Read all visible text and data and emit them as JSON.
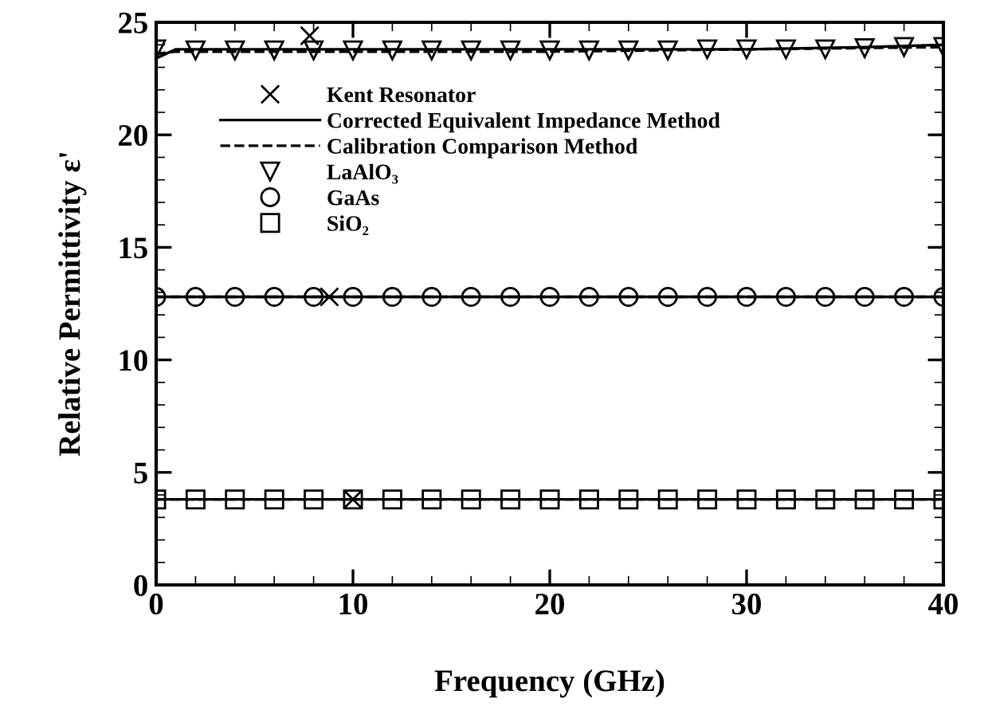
{
  "chart_data": {
    "type": "line",
    "xlabel": "Frequency (GHz)",
    "ylabel": "Relative Permittivity ε'",
    "xlim": [
      0,
      40
    ],
    "ylim": [
      0,
      25
    ],
    "xticks": [
      0,
      {
        "value": 2,
        "label": null
      },
      {
        "value": 4,
        "label": null
      },
      {
        "value": 6,
        "label": null
      },
      {
        "value": 8,
        "label": null
      },
      10,
      {
        "value": 12,
        "label": null
      },
      {
        "value": 14,
        "label": null
      },
      {
        "value": 16,
        "label": null
      },
      {
        "value": 18,
        "label": null
      },
      20,
      {
        "value": 22,
        "label": null
      },
      {
        "value": 24,
        "label": null
      },
      {
        "value": 26,
        "label": null
      },
      {
        "value": 28,
        "label": null
      },
      30,
      {
        "value": 32,
        "label": null
      },
      {
        "value": 34,
        "label": null
      },
      {
        "value": 36,
        "label": null
      },
      {
        "value": 38,
        "label": null
      },
      40
    ],
    "yticks": [
      0,
      {
        "value": 1,
        "label": null
      },
      {
        "value": 2,
        "label": null
      },
      {
        "value": 3,
        "label": null
      },
      {
        "value": 4,
        "label": null
      },
      5,
      {
        "value": 6,
        "label": null
      },
      {
        "value": 7,
        "label": null
      },
      {
        "value": 8,
        "label": null
      },
      {
        "value": 9,
        "label": null
      },
      10,
      {
        "value": 11,
        "label": null
      },
      {
        "value": 12,
        "label": null
      },
      {
        "value": 13,
        "label": null
      },
      {
        "value": 14,
        "label": null
      },
      15,
      {
        "value": 16,
        "label": null
      },
      {
        "value": 17,
        "label": null
      },
      {
        "value": 18,
        "label": null
      },
      {
        "value": 19,
        "label": null
      },
      20,
      {
        "value": 21,
        "label": null
      },
      {
        "value": 22,
        "label": null
      },
      {
        "value": 23,
        "label": null
      },
      {
        "value": 24,
        "label": null
      },
      25
    ],
    "grid": false,
    "legend": "top left",
    "series": [
      {
        "name": "Kent Resonator",
        "type": "scatter",
        "marker": "cross",
        "color": "#000000",
        "x": [
          7.8,
          8.8,
          10
        ],
        "values": [
          24.4,
          12.8,
          3.8
        ]
      },
      {
        "name": "Corrected Equivalent Impedance Method",
        "type": "line",
        "line_style": "solid",
        "marker": "none",
        "color": "#000000",
        "x": [
          0,
          1,
          5,
          10,
          20,
          30,
          36,
          40
        ],
        "values": [
          23.4,
          23.8,
          23.8,
          23.8,
          23.8,
          23.8,
          23.9,
          24.0
        ]
      },
      {
        "name": "Calibration Comparison Method",
        "type": "line",
        "line_style": "dashed",
        "marker": "none",
        "color": "#000000",
        "x": [
          0,
          1,
          10,
          20,
          30,
          40
        ],
        "values": [
          23.6,
          23.7,
          23.7,
          23.7,
          23.8,
          23.9
        ]
      },
      {
        "type": "line",
        "line_style": "solid",
        "marker": "none",
        "color": "#000000",
        "x": [
          0,
          40
        ],
        "values": [
          12.8,
          12.8
        ]
      },
      {
        "type": "line",
        "line_style": "dashed",
        "marker": "none",
        "color": "#000000",
        "x": [
          0,
          40
        ],
        "values": [
          12.8,
          12.8
        ]
      },
      {
        "type": "line",
        "line_style": "solid",
        "marker": "none",
        "color": "#000000",
        "x": [
          0,
          40
        ],
        "values": [
          3.8,
          3.8
        ]
      },
      {
        "type": "line",
        "line_style": "dashed",
        "marker": "none",
        "color": "#000000",
        "x": [
          0,
          40
        ],
        "values": [
          3.8,
          3.8
        ]
      },
      {
        "name": "LaAlO₃",
        "type": "scatter",
        "marker": "triangle",
        "color": "#000000",
        "x": [
          0,
          2,
          4,
          6,
          8,
          10,
          12,
          14,
          16,
          18,
          20,
          22,
          24,
          26,
          28,
          30,
          32,
          34,
          36,
          38,
          40
        ],
        "values": [
          23.8,
          23.75,
          23.75,
          23.75,
          23.75,
          23.75,
          23.75,
          23.75,
          23.75,
          23.75,
          23.75,
          23.75,
          23.75,
          23.75,
          23.8,
          23.8,
          23.8,
          23.8,
          23.85,
          23.9,
          23.9
        ]
      },
      {
        "name": "GaAs",
        "type": "scatter",
        "marker": "circle",
        "color": "#000000",
        "x": [
          0,
          2,
          4,
          6,
          8,
          10,
          12,
          14,
          16,
          18,
          20,
          22,
          24,
          26,
          28,
          30,
          32,
          34,
          36,
          38,
          40
        ],
        "values": [
          12.8,
          12.8,
          12.8,
          12.8,
          12.8,
          12.8,
          12.8,
          12.8,
          12.8,
          12.8,
          12.8,
          12.8,
          12.8,
          12.8,
          12.8,
          12.8,
          12.8,
          12.8,
          12.8,
          12.8,
          12.8
        ]
      },
      {
        "name": "SiO₂",
        "type": "scatter",
        "marker": "square",
        "color": "#000000",
        "x": [
          0,
          2,
          4,
          6,
          8,
          10,
          12,
          14,
          16,
          18,
          20,
          22,
          24,
          26,
          28,
          30,
          32,
          34,
          36,
          38,
          40
        ],
        "values": [
          3.8,
          3.8,
          3.8,
          3.8,
          3.8,
          3.8,
          3.8,
          3.8,
          3.8,
          3.8,
          3.8,
          3.8,
          3.8,
          3.8,
          3.8,
          3.8,
          3.8,
          3.8,
          3.8,
          3.8,
          3.8
        ]
      }
    ]
  }
}
